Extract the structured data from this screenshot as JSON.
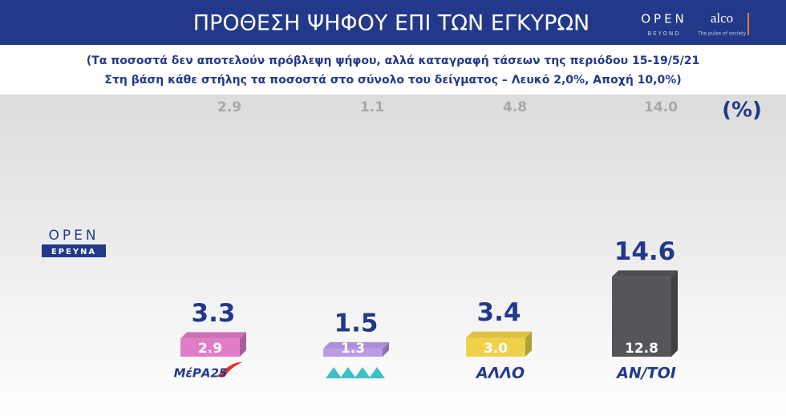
{
  "branding": {
    "open": "OPEN",
    "beyond": "BEYOND",
    "alco": "alco",
    "alco_tagline": "The pulse of society",
    "side_open": "OPEN",
    "side_research": "ΕΡΕΥΝΑ"
  },
  "chart_data": {
    "type": "bar",
    "title": "ΠΡΟΘΕΣΗ ΨΗΦΟΥ ΕΠΙ ΤΩΝ ΕΓΚΥΡΩΝ",
    "subtitle": [
      "(Τα ποσοστά δεν αποτελούν πρόβλεψη ψήφου, αλλά καταγραφή τάσεων της περιόδου 15-19/5/21",
      "Στη βάση κάθε στήλης τα ποσοστά στο σύνολο του δείγματος – Λευκό 2,0%, Αποχή 10,0%)"
    ],
    "unit_label": "(%)",
    "categories": [
      "ΜέΡΑ25",
      null,
      "ΑΛΛΟ",
      "ΑΝ/ΤΟΙ"
    ],
    "values": [
      2.9,
      1.3,
      3,
      12.8
    ],
    "value_labels": [
      "2.9",
      "1.3",
      "3.0",
      "12.8"
    ],
    "valid_values": [
      3.3,
      1.5,
      3.4,
      14.6
    ],
    "previous_values": [
      2.9,
      1.1,
      4.8,
      14
    ],
    "previous_labels": [
      "2.9",
      "1.1",
      "4.8",
      "14.0"
    ],
    "colors": [
      "#e07cc8",
      "#b99be6",
      "#f0d24a",
      "#555659"
    ],
    "ylim": [
      0,
      14
    ]
  }
}
